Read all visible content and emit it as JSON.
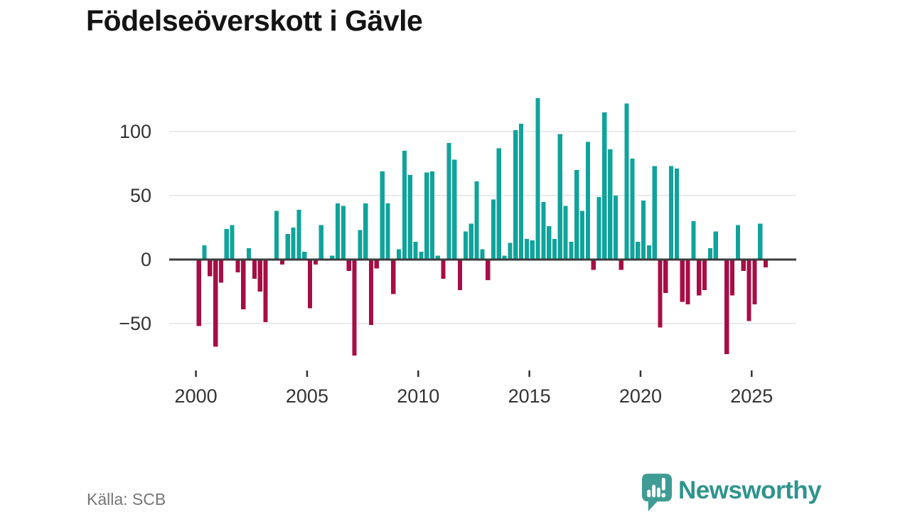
{
  "title": "Födelseöverskott i Gävle",
  "source": "Källa: SCB",
  "branding": {
    "name": "Newsworthy",
    "logo_icon": "speech-bubble-bar-chart-exclamation",
    "wordmark_color": "#2f948c",
    "icon_color": "#3f9c95"
  },
  "chart_data": {
    "type": "bar",
    "title": "Födelseöverskott i Gävle",
    "frequency": "quarterly",
    "start": "2000-Q1",
    "end": "2025-Q3",
    "values": [
      -52,
      11,
      -13,
      -68,
      -18,
      24,
      27,
      -10,
      -39,
      9,
      -15,
      -25,
      -49,
      0,
      38,
      -4,
      20,
      25,
      39,
      6,
      -38,
      -4,
      27,
      0,
      3,
      44,
      42,
      -9,
      -75,
      23,
      44,
      -51,
      -7,
      69,
      44,
      -27,
      8,
      85,
      66,
      14,
      6,
      68,
      69,
      3,
      -15,
      91,
      78,
      -24,
      22,
      28,
      61,
      8,
      -16,
      47,
      87,
      3,
      13,
      101,
      106,
      16,
      15,
      126,
      45,
      26,
      16,
      98,
      42,
      14,
      70,
      38,
      92,
      -8,
      49,
      115,
      86,
      50,
      -8,
      122,
      79,
      14,
      46,
      11,
      73,
      -53,
      -26,
      73,
      71,
      -33,
      -35,
      30,
      -28,
      -24,
      9,
      22,
      0,
      -74,
      -28,
      27,
      -9,
      -48,
      -35,
      28,
      -6
    ],
    "x_ticks": [
      2000,
      2005,
      2010,
      2015,
      2020,
      2025
    ],
    "y_ticks": [
      100,
      50,
      0,
      -50
    ],
    "ylim": [
      -80,
      140
    ],
    "grid": true,
    "legend_position": "none",
    "positive_color": "#10a39b",
    "negative_color": "#a60e45",
    "grid_color": "#e4e4e4",
    "axis_color": "#3b3b3b",
    "tick_text_color": "#333333"
  }
}
